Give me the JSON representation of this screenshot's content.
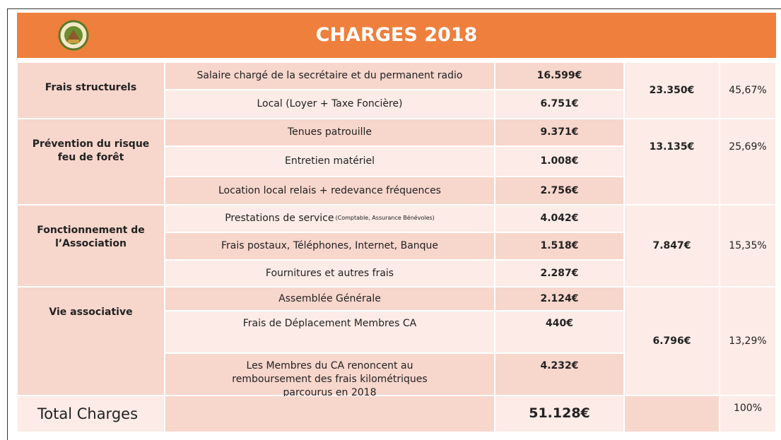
{
  "header": {
    "title": "CHARGES 2018"
  },
  "groups": [
    {
      "category": "Frais structurels",
      "total": "23.350€",
      "percent": "45,67%",
      "items": [
        {
          "label": "Salaire chargé de la secrétaire et du permanent radio",
          "amount": "16.599€"
        },
        {
          "label": "Local (Loyer + Taxe Foncière)",
          "amount": "6.751€"
        }
      ]
    },
    {
      "category": "Prévention du risque feu de forêt",
      "total": "13.135€",
      "percent": "25,69%",
      "items": [
        {
          "label": "Tenues patrouille",
          "amount": "9.371€"
        },
        {
          "label": "Entretien matériel",
          "amount": "1.008€"
        },
        {
          "label": "Location local relais + redevance fréquences",
          "amount": "2.756€"
        }
      ]
    },
    {
      "category": "Fonctionnement de l’Association",
      "total": "7.847€",
      "percent": "15,35%",
      "items": [
        {
          "label": "Prestations de service",
          "note": "(Comptable, Assurance Bénévoles)",
          "amount": "4.042€"
        },
        {
          "label": "Frais postaux, Téléphones, Internet, Banque",
          "amount": "1.518€"
        },
        {
          "label": "Fournitures et autres frais",
          "amount": "2.287€"
        }
      ]
    },
    {
      "category": "Vie associative",
      "total": "6.796€",
      "percent": "13,29%",
      "items": [
        {
          "label": "Assemblée Générale",
          "amount": "2.124€"
        },
        {
          "label": "Frais de Déplacement Membres CA",
          "amount": "440€"
        },
        {
          "label": "Les Membres du CA renoncent au remboursement des frais kilométriques parcourus en 2018",
          "amount": "4.232€"
        }
      ]
    }
  ],
  "total": {
    "label": "Total Charges",
    "amount": "51.128€",
    "percent": "100%"
  }
}
